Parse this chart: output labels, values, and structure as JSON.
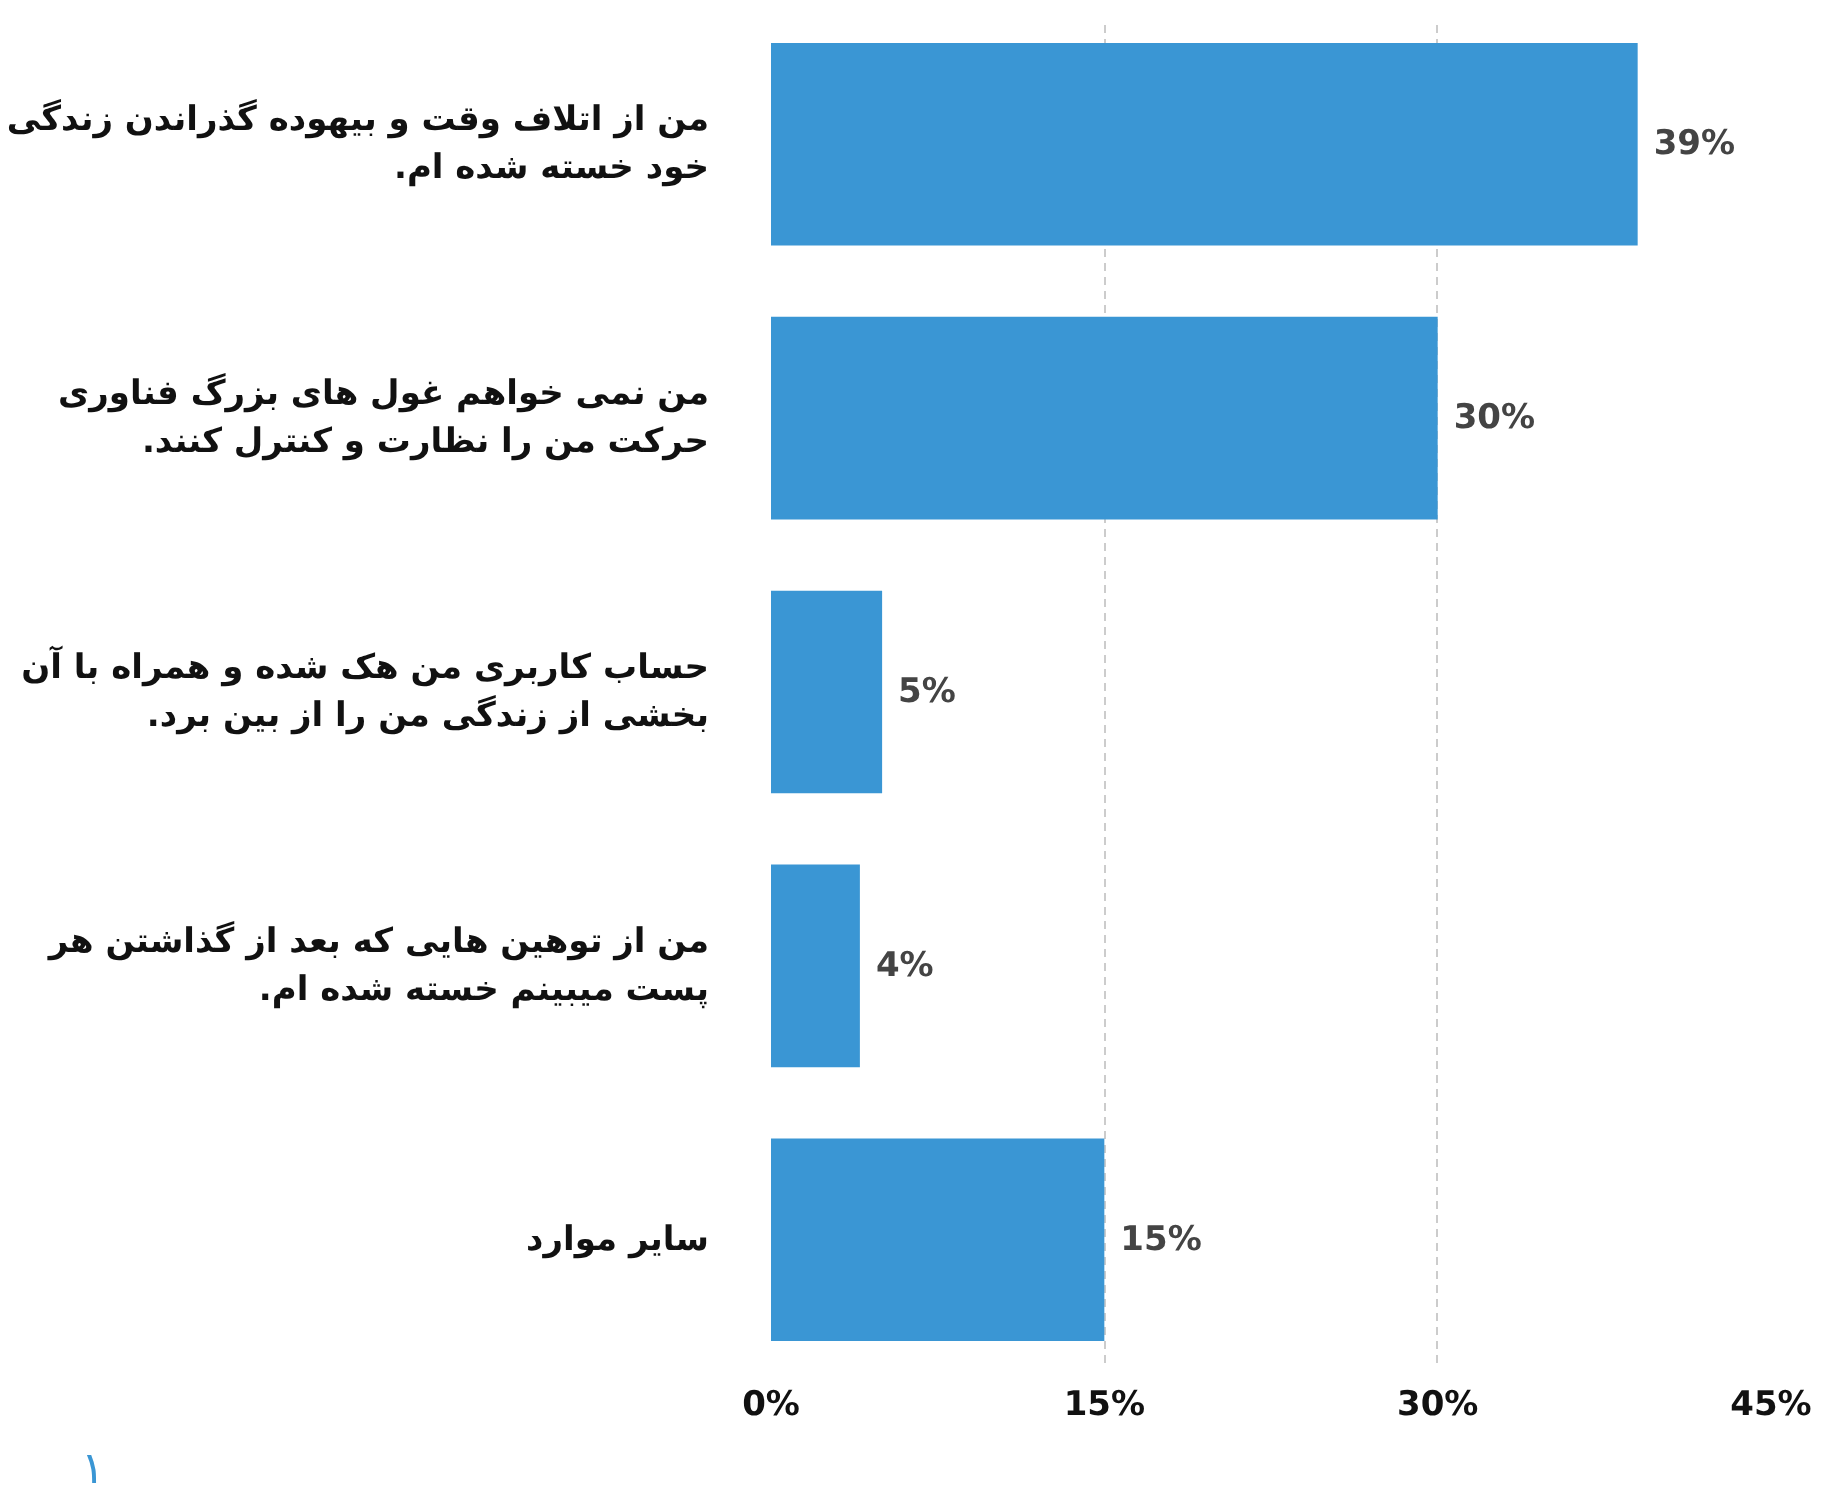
{
  "chart_data": {
    "type": "bar",
    "orientation": "horizontal",
    "categories": [
      "من از اتلاف وقت و بیهوده گذراندن زندگی\nخود خسته شده ام.",
      "من نمی خواهم غول های بزرگ فناوری\nحرکت من را نظارت و کنترل کنند.",
      "حساب کاربری من هک شده و همراه با آن\nبخشی از زندگی من را از بین برد.",
      "من از توهین هایی که بعد از گذاشتن هر\nپست میبینم خسته شده ام.",
      "سایر موارد"
    ],
    "values": [
      39,
      30,
      5,
      4,
      15
    ],
    "value_labels": [
      "39%",
      "30%",
      "5%",
      "4%",
      "15%"
    ],
    "color": "#3a96d4",
    "xlim": [
      0,
      45
    ],
    "xticks": [
      {
        "value": 0,
        "label": "0%"
      },
      {
        "value": 15,
        "label": "15%"
      },
      {
        "value": 30,
        "label": "30%"
      },
      {
        "value": 45,
        "label": "45%"
      }
    ],
    "grid": "x",
    "annotations": [
      "١"
    ]
  }
}
